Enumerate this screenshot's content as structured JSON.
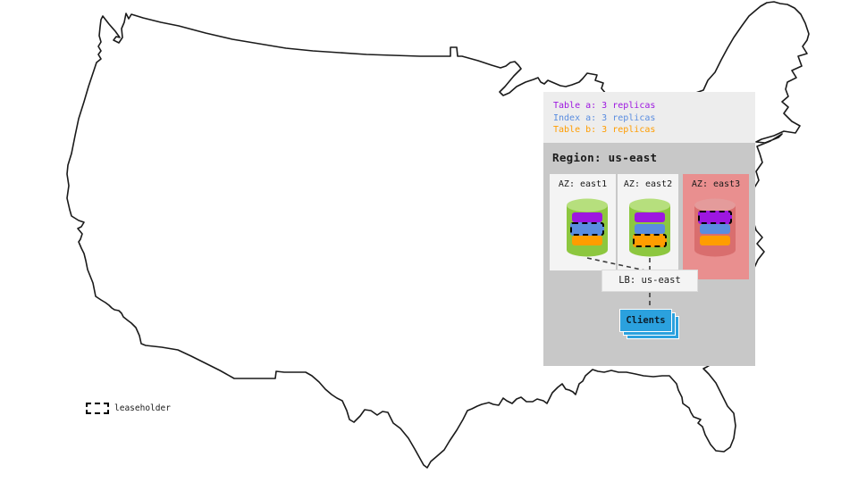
{
  "replica_legend": {
    "items": [
      {
        "label": "Table a: 3 replicas",
        "color_key": "table_a"
      },
      {
        "label": "Index a: 3 replicas",
        "color_key": "index_a"
      },
      {
        "label": "Table b: 3 replicas",
        "color_key": "table_b"
      }
    ]
  },
  "region": {
    "title": "Region: us-east",
    "zones": [
      {
        "label": "AZ: east1",
        "status": "up",
        "replicas": [
          {
            "key": "table_a",
            "leaseholder": false
          },
          {
            "key": "index_a",
            "leaseholder": true
          },
          {
            "key": "table_b",
            "leaseholder": false
          }
        ]
      },
      {
        "label": "AZ: east2",
        "status": "up",
        "replicas": [
          {
            "key": "table_a",
            "leaseholder": false
          },
          {
            "key": "index_a",
            "leaseholder": false
          },
          {
            "key": "table_b",
            "leaseholder": true
          }
        ]
      },
      {
        "label": "AZ: east3",
        "status": "down",
        "replicas": [
          {
            "key": "table_a",
            "leaseholder": true
          },
          {
            "key": "index_a",
            "leaseholder": false
          },
          {
            "key": "table_b",
            "leaseholder": false
          }
        ]
      }
    ]
  },
  "load_balancer": {
    "label": "LB: us-east"
  },
  "clients": {
    "label": "Clients"
  },
  "leaseholder_key": {
    "label": "leaseholder"
  },
  "colors": {
    "table_a": "#9d17e0",
    "index_a": "#5a8de0",
    "table_b": "#ff9d00",
    "zone_up": "#f4f4f4",
    "zone_down": "#e98f8f",
    "cyl_up": "#8dc73f",
    "cyl_up_top": "#b6df7d",
    "cyl_down": "#d96e6e",
    "cyl_down_top": "#e49b9b",
    "clients_blue": "#2ba1de",
    "region_bg": "#c8c8c8",
    "legend_bg": "#ededed"
  }
}
